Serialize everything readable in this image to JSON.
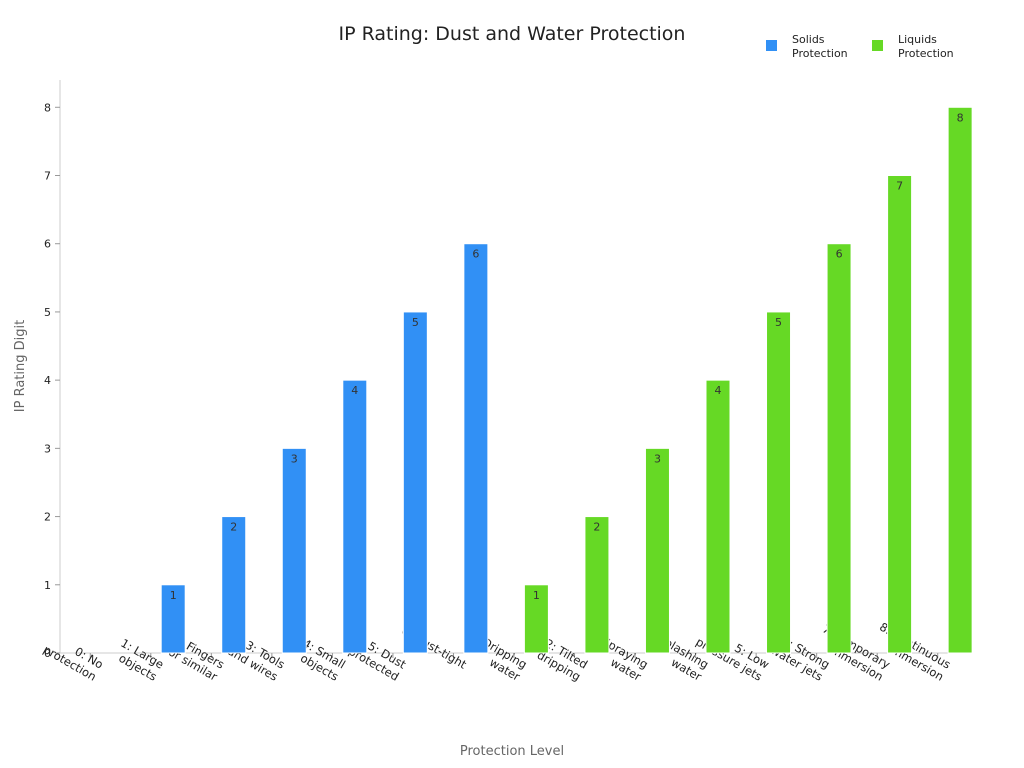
{
  "chart_data": {
    "type": "bar",
    "title": "IP Rating: Dust and Water Protection",
    "xlabel": "Protection Level",
    "ylabel": "IP Rating Digit",
    "ylim": [
      0,
      8.4
    ],
    "yticks": [
      "0",
      "1",
      "2",
      "3",
      "4",
      "5",
      "6",
      "7",
      "8"
    ],
    "grid": false,
    "legend_position": "top-right",
    "categories": [
      "0: No protection",
      "1: Large objects",
      "2: Fingers or similar",
      "3: Tools and wires",
      "4: Small objects",
      "5: Dust protected",
      "6: Dust-tight",
      "1: Dripping water",
      "2: Tilted dripping",
      "3: Spraying water",
      "4: Splashing water",
      "5: Low pressure jets",
      "6: Strong water jets",
      "7: Temporary immersion",
      "8: Continuous immersion"
    ],
    "series": [
      {
        "name": "Solids Protection",
        "color": "#3190f5",
        "values": [
          0,
          1,
          2,
          3,
          4,
          5,
          6,
          null,
          null,
          null,
          null,
          null,
          null,
          null,
          null
        ]
      },
      {
        "name": "Liquids Protection",
        "color": "#66d925",
        "values": [
          null,
          null,
          null,
          null,
          null,
          null,
          null,
          1,
          2,
          3,
          4,
          5,
          6,
          7,
          8
        ]
      }
    ]
  }
}
